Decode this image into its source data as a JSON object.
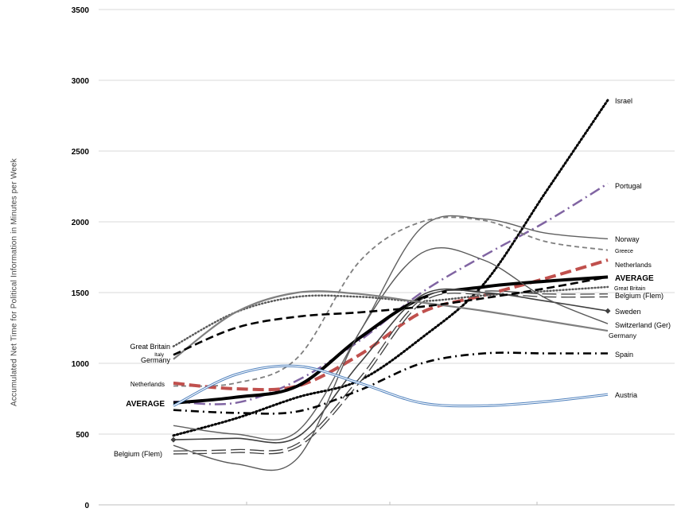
{
  "chart_data": {
    "type": "line",
    "ylabel": "Accumulated Net Time for Political Information in Minutes per Week",
    "xlabel": "",
    "ylim": [
      0,
      3500
    ],
    "yticks": [
      0,
      500,
      1000,
      1500,
      2000,
      2500,
      3000,
      3500
    ],
    "x": [
      0,
      1,
      2,
      3,
      4,
      5,
      6,
      7
    ],
    "grid": "horizontal",
    "legend": "none",
    "series": [
      {
        "name": "Israel",
        "label_end": "Israel",
        "color": "#000000",
        "style": "dotted-heavy",
        "values": [
          490,
          610,
          760,
          880,
          1180,
          1560,
          2210,
          2860
        ]
      },
      {
        "name": "Portugal",
        "label_end": "Portugal",
        "color": "#8064a2",
        "style": "dashdot-long",
        "values": [
          730,
          720,
          880,
          1160,
          1500,
          1760,
          2000,
          2270
        ]
      },
      {
        "name": "Norway",
        "label_end": "Norway",
        "color": "#606060",
        "style": "solid-thin",
        "values": [
          560,
          500,
          520,
          1220,
          1960,
          2020,
          1920,
          1880
        ]
      },
      {
        "name": "Greece",
        "label_end": "Greece",
        "color": "#7f7f7f",
        "style": "dashed-short",
        "values": [
          840,
          860,
          1040,
          1720,
          2000,
          2010,
          1860,
          1800
        ]
      },
      {
        "name": "Netherlands",
        "label_start": "Netherlands",
        "label_end": "Netherlands",
        "color": "#c0504d",
        "style": "dashed-long-heavy",
        "values": [
          860,
          820,
          840,
          1060,
          1360,
          1480,
          1600,
          1730
        ]
      },
      {
        "name": "AVERAGE",
        "label_start": "AVERAGE",
        "label_end": "AVERAGE",
        "color": "#000000",
        "style": "solid-heavy",
        "values": [
          720,
          760,
          840,
          1180,
          1460,
          1540,
          1580,
          1610
        ]
      },
      {
        "name": "Great Britain",
        "label_start": "Great Britain",
        "label_end": "Great Britain",
        "color": "#595959",
        "style": "dotted",
        "values": [
          1120,
          1360,
          1470,
          1470,
          1440,
          1480,
          1510,
          1540
        ]
      },
      {
        "name": "Belgium (Flem)",
        "label_start": "Belgium (Flem)",
        "label_end": "Belgium (Flem)",
        "color": "#404040",
        "style": "dashed-double",
        "values": [
          370,
          380,
          420,
          880,
          1440,
          1500,
          1480,
          1480
        ]
      },
      {
        "name": "Sweden",
        "label_end": "Sweden",
        "color": "#404040",
        "style": "solid-diamond",
        "values": [
          460,
          470,
          480,
          1000,
          1480,
          1500,
          1440,
          1370
        ]
      },
      {
        "name": "Switzerland (Ger)",
        "label_end": "Switzerland (Ger)",
        "color": "#595959",
        "style": "solid-thin",
        "values": [
          420,
          290,
          330,
          1220,
          1780,
          1730,
          1460,
          1280
        ]
      },
      {
        "name": "Germany",
        "label_start": "Germany",
        "label_end": "Germany",
        "color": "#7f7f7f",
        "style": "solid-medium",
        "values": [
          1030,
          1360,
          1500,
          1490,
          1430,
          1370,
          1300,
          1230
        ]
      },
      {
        "name": "Italy",
        "label_start": "Italy",
        "color": "#000000",
        "style": "dashed-heavy",
        "values": [
          1060,
          1250,
          1330,
          1360,
          1400,
          1460,
          1530,
          1610
        ]
      },
      {
        "name": "Spain",
        "label_end": "Spain",
        "color": "#000000",
        "style": "dashdot-heavy",
        "values": [
          670,
          650,
          660,
          810,
          1000,
          1070,
          1070,
          1070
        ]
      },
      {
        "name": "Austria",
        "label_end": "Austria",
        "color": "#4f81bd",
        "style": "double-line",
        "values": [
          700,
          920,
          980,
          860,
          720,
          700,
          730,
          780
        ]
      }
    ]
  }
}
